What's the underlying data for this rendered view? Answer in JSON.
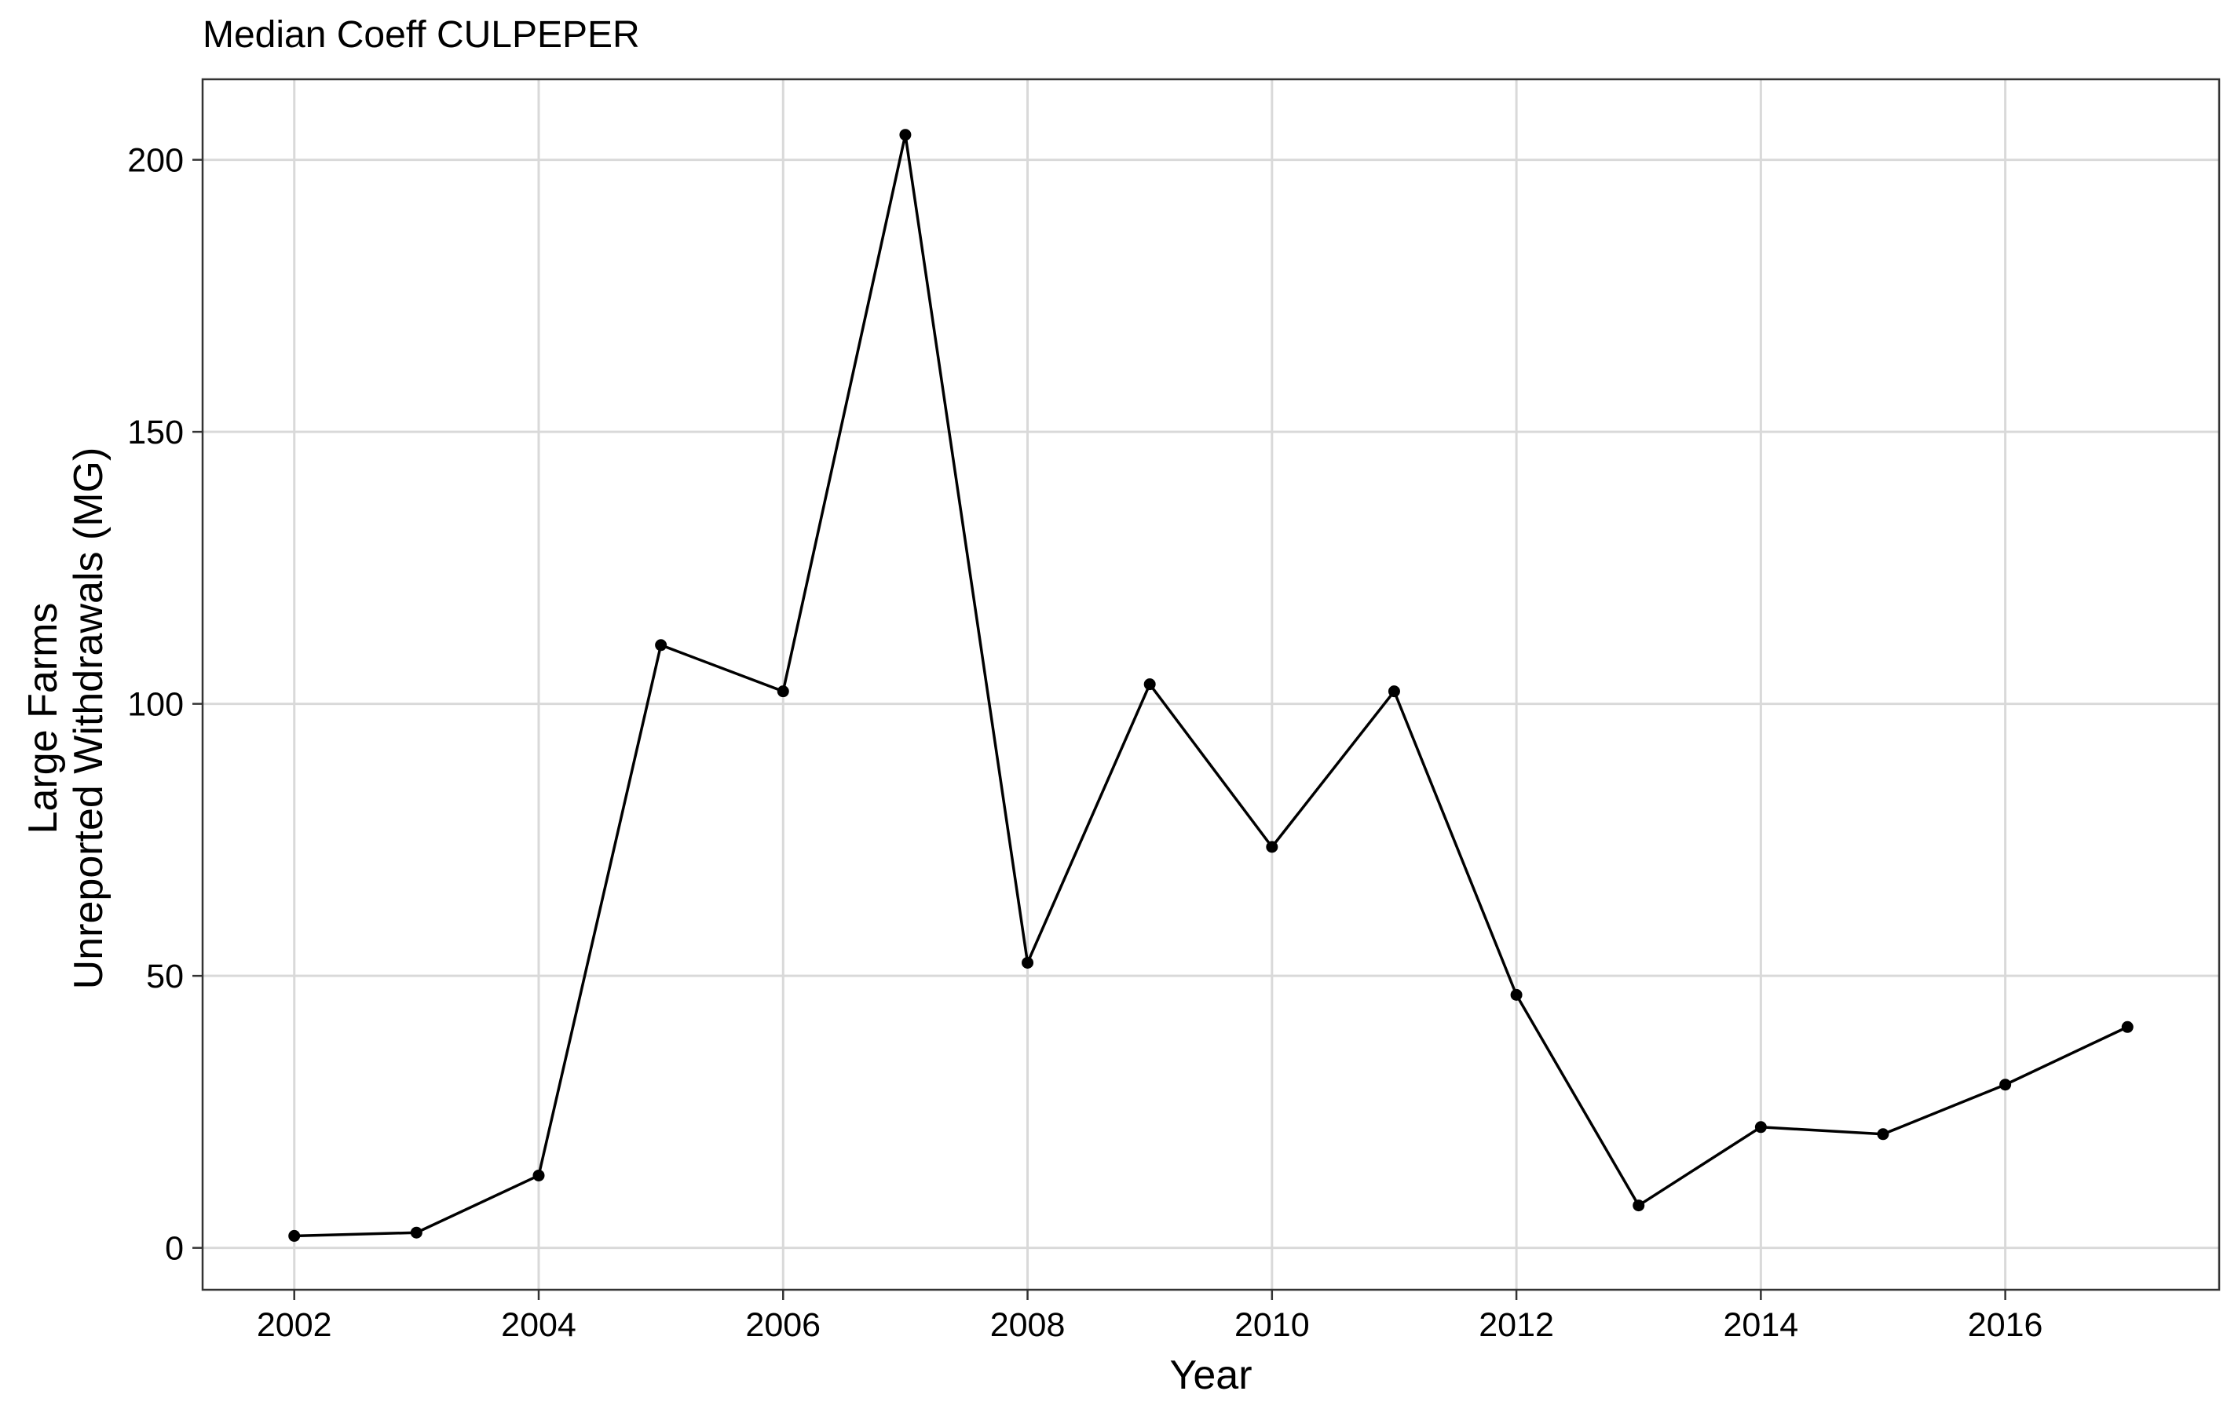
{
  "chart_data": {
    "type": "line",
    "title": "Median Coeff CULPEPER",
    "xlabel": "Year",
    "ylabel_lines": [
      "Large Farms",
      "Unreported Withdrawals (MG)"
    ],
    "x": [
      2002,
      2003,
      2004,
      2005,
      2006,
      2007,
      2008,
      2009,
      2010,
      2011,
      2012,
      2013,
      2014,
      2015,
      2016,
      2017
    ],
    "series": [
      {
        "values": [
          2.2,
          2.8,
          13.3,
          110.8,
          102.3,
          204.6,
          52.4,
          103.6,
          73.7,
          102.3,
          46.5,
          7.8,
          22.2,
          20.9,
          30.0,
          40.6
        ]
      }
    ],
    "xlim": [
      2001.25,
      2017.75
    ],
    "ylim": [
      -7.7,
      214.8
    ],
    "x_ticks": [
      2002,
      2004,
      2006,
      2008,
      2010,
      2012,
      2014,
      2016
    ],
    "y_ticks": [
      0,
      50,
      100,
      150,
      200
    ],
    "grid": true,
    "legend": "none",
    "colors": {
      "line": "#000000",
      "grid": "#d9d9d9",
      "border": "#333333"
    }
  }
}
